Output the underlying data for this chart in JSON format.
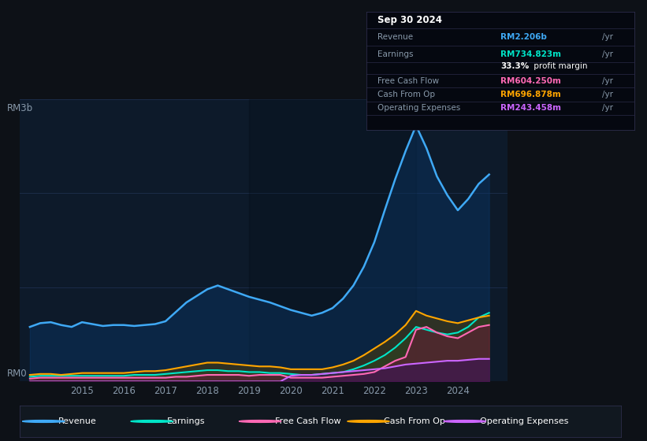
{
  "bg_color": "#0d1117",
  "plot_bg_color": "#0d1a2a",
  "grid_color": "#1e3050",
  "ylabel_text": "RM3b",
  "y0_text": "RM0",
  "x_ticks": [
    2015,
    2016,
    2017,
    2018,
    2019,
    2020,
    2021,
    2022,
    2023,
    2024
  ],
  "info_box": {
    "date": "Sep 30 2024",
    "rows": [
      {
        "label": "Revenue",
        "value": "RM2.206b",
        "suffix": "/yr",
        "value_color": "#3fa9f5"
      },
      {
        "label": "Earnings",
        "value": "RM734.823m",
        "suffix": "/yr",
        "value_color": "#00e5c8"
      },
      {
        "label": "",
        "value": "33.3%",
        "suffix": " profit margin",
        "value_color": "#ffffff"
      },
      {
        "label": "Free Cash Flow",
        "value": "RM604.250m",
        "suffix": "/yr",
        "value_color": "#ff69b4"
      },
      {
        "label": "Cash From Op",
        "value": "RM696.878m",
        "suffix": "/yr",
        "value_color": "#ffa500"
      },
      {
        "label": "Operating Expenses",
        "value": "RM243.458m",
        "suffix": "/yr",
        "value_color": "#cc66ff"
      }
    ]
  },
  "legend": [
    {
      "label": "Revenue",
      "color": "#3fa9f5"
    },
    {
      "label": "Earnings",
      "color": "#00e5c8"
    },
    {
      "label": "Free Cash Flow",
      "color": "#ff69b4"
    },
    {
      "label": "Cash From Op",
      "color": "#ffa500"
    },
    {
      "label": "Operating Expenses",
      "color": "#cc66ff"
    }
  ],
  "series": {
    "x": [
      2013.75,
      2014.0,
      2014.25,
      2014.5,
      2014.75,
      2015.0,
      2015.25,
      2015.5,
      2015.75,
      2016.0,
      2016.25,
      2016.5,
      2016.75,
      2017.0,
      2017.25,
      2017.5,
      2017.75,
      2018.0,
      2018.25,
      2018.5,
      2018.75,
      2019.0,
      2019.25,
      2019.5,
      2019.75,
      2020.0,
      2020.25,
      2020.5,
      2020.75,
      2021.0,
      2021.25,
      2021.5,
      2021.75,
      2022.0,
      2022.25,
      2022.5,
      2022.75,
      2023.0,
      2023.25,
      2023.5,
      2023.75,
      2024.0,
      2024.25,
      2024.5,
      2024.75
    ],
    "revenue": [
      0.58,
      0.62,
      0.63,
      0.6,
      0.58,
      0.63,
      0.61,
      0.59,
      0.6,
      0.6,
      0.59,
      0.6,
      0.61,
      0.64,
      0.74,
      0.84,
      0.91,
      0.98,
      1.02,
      0.98,
      0.94,
      0.9,
      0.87,
      0.84,
      0.8,
      0.76,
      0.73,
      0.7,
      0.73,
      0.78,
      0.88,
      1.02,
      1.22,
      1.48,
      1.82,
      2.15,
      2.45,
      2.72,
      2.48,
      2.18,
      1.98,
      1.82,
      1.94,
      2.1,
      2.2
    ],
    "earnings": [
      0.05,
      0.06,
      0.06,
      0.06,
      0.06,
      0.06,
      0.06,
      0.06,
      0.06,
      0.06,
      0.07,
      0.07,
      0.07,
      0.08,
      0.09,
      0.1,
      0.11,
      0.12,
      0.12,
      0.11,
      0.11,
      0.1,
      0.1,
      0.09,
      0.09,
      0.08,
      0.07,
      0.07,
      0.08,
      0.09,
      0.1,
      0.13,
      0.17,
      0.22,
      0.28,
      0.36,
      0.46,
      0.58,
      0.55,
      0.52,
      0.5,
      0.52,
      0.58,
      0.68,
      0.73
    ],
    "free_cash_flow": [
      0.03,
      0.04,
      0.04,
      0.04,
      0.04,
      0.04,
      0.04,
      0.04,
      0.04,
      0.04,
      0.04,
      0.04,
      0.04,
      0.04,
      0.05,
      0.05,
      0.06,
      0.07,
      0.07,
      0.07,
      0.07,
      0.06,
      0.07,
      0.07,
      0.07,
      0.04,
      0.04,
      0.04,
      0.04,
      0.05,
      0.06,
      0.07,
      0.08,
      0.1,
      0.16,
      0.22,
      0.26,
      0.55,
      0.58,
      0.52,
      0.48,
      0.46,
      0.52,
      0.58,
      0.6
    ],
    "cash_from_op": [
      0.07,
      0.08,
      0.08,
      0.07,
      0.08,
      0.09,
      0.09,
      0.09,
      0.09,
      0.09,
      0.1,
      0.11,
      0.11,
      0.12,
      0.14,
      0.16,
      0.18,
      0.2,
      0.2,
      0.19,
      0.18,
      0.17,
      0.16,
      0.16,
      0.15,
      0.13,
      0.13,
      0.13,
      0.13,
      0.15,
      0.18,
      0.22,
      0.28,
      0.35,
      0.42,
      0.5,
      0.6,
      0.75,
      0.7,
      0.67,
      0.64,
      0.62,
      0.65,
      0.68,
      0.7
    ],
    "op_expenses": [
      0.0,
      0.0,
      0.0,
      0.0,
      0.0,
      0.0,
      0.0,
      0.0,
      0.0,
      0.0,
      0.0,
      0.0,
      0.0,
      0.0,
      0.0,
      0.0,
      0.0,
      0.0,
      0.0,
      0.0,
      0.0,
      0.0,
      0.0,
      0.0,
      0.0,
      0.06,
      0.07,
      0.07,
      0.08,
      0.09,
      0.1,
      0.11,
      0.12,
      0.13,
      0.14,
      0.16,
      0.18,
      0.19,
      0.2,
      0.21,
      0.22,
      0.22,
      0.23,
      0.24,
      0.24
    ]
  },
  "shaded_region_start": 2019.0,
  "shaded_region_end": 2023.0,
  "ylim": [
    0,
    3.0
  ],
  "xlim": [
    2013.5,
    2025.2
  ]
}
